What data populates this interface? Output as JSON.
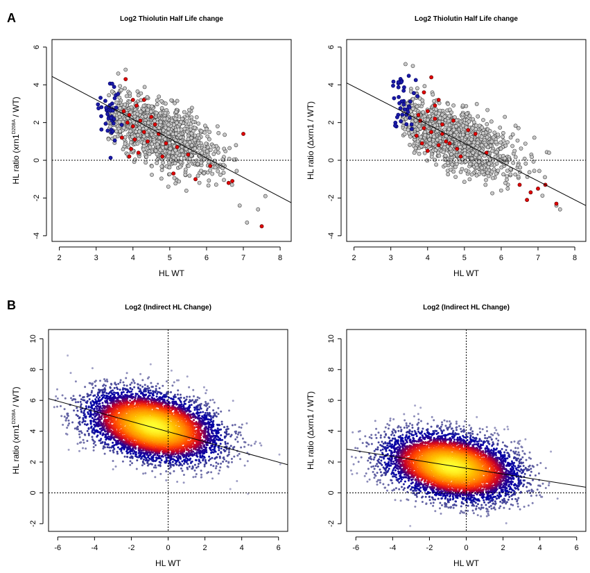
{
  "figure": {
    "panel_a": "A",
    "panel_b": "B"
  },
  "chart_data": [
    {
      "id": "A1",
      "type": "scatter",
      "title": "Log2 Thiolutin Half Life change",
      "xlabel": "HL WT",
      "ylabel_pre": "HL ratio (xrn1",
      "ylabel_sup": "D208A",
      "ylabel_post": " / WT)",
      "xlim": [
        1.8,
        8.3
      ],
      "ylim": [
        -4.3,
        6.4
      ],
      "xticks": [
        2,
        3,
        4,
        5,
        6,
        7,
        8
      ],
      "yticks": [
        -4,
        -2,
        0,
        2,
        4,
        6
      ],
      "hline": 0,
      "vline": null,
      "regression": {
        "slope": -1.03,
        "intercept": 6.3
      },
      "cloud": {
        "n": 1200,
        "center": [
          4.75,
          1.4
        ],
        "sd": [
          0.8,
          1.0
        ],
        "rho": -0.62,
        "xrange": [
          3.3,
          7.7
        ]
      },
      "blue_points": {
        "n": 45,
        "center": [
          3.35,
          2.7
        ],
        "sd": [
          0.15,
          0.8
        ]
      },
      "red_points": [
        [
          3.85,
          2.0
        ],
        [
          3.9,
          2.4
        ],
        [
          4.0,
          1.8
        ],
        [
          4.1,
          2.9
        ],
        [
          4.2,
          2.1
        ],
        [
          4.3,
          1.5
        ],
        [
          4.0,
          3.2
        ],
        [
          3.7,
          1.2
        ],
        [
          4.5,
          2.3
        ],
        [
          4.4,
          1.0
        ],
        [
          4.7,
          1.4
        ],
        [
          4.9,
          0.9
        ],
        [
          5.2,
          0.7
        ],
        [
          5.1,
          -0.7
        ],
        [
          5.7,
          -1.0
        ],
        [
          6.7,
          -1.1
        ],
        [
          7.0,
          1.4
        ],
        [
          7.5,
          -3.5
        ],
        [
          3.8,
          4.3
        ],
        [
          4.3,
          3.2
        ],
        [
          3.95,
          0.6
        ],
        [
          4.6,
          1.9
        ],
        [
          3.75,
          2.6
        ],
        [
          4.15,
          0.4
        ],
        [
          4.8,
          0.2
        ],
        [
          5.5,
          0.3
        ],
        [
          6.1,
          -0.3
        ],
        [
          6.6,
          -1.2
        ],
        [
          4.05,
          1.1
        ],
        [
          3.9,
          0.2
        ]
      ],
      "outliers": [
        [
          7.1,
          -3.3
        ],
        [
          7.4,
          -2.6
        ],
        [
          6.9,
          -2.4
        ],
        [
          7.6,
          -1.9
        ],
        [
          3.6,
          4.6
        ],
        [
          3.8,
          4.8
        ],
        [
          6.3,
          1.8
        ],
        [
          6.8,
          0.8
        ]
      ]
    },
    {
      "id": "A2",
      "type": "scatter",
      "title": "Log2 Thiolutin Half Life change",
      "xlabel": "HL WT",
      "ylabel_pre": "HL ratio (Δxrn1 / WT)",
      "ylabel_sup": "",
      "ylabel_post": "",
      "xlim": [
        1.8,
        8.3
      ],
      "ylim": [
        -4.3,
        6.4
      ],
      "xticks": [
        2,
        3,
        4,
        5,
        6,
        7,
        8
      ],
      "yticks": [
        -4,
        -2,
        0,
        2,
        4,
        6
      ],
      "hline": 0,
      "vline": null,
      "regression": {
        "slope": -1.0,
        "intercept": 5.9
      },
      "cloud": {
        "n": 1200,
        "center": [
          4.75,
          1.1
        ],
        "sd": [
          0.8,
          1.0
        ],
        "rho": -0.62,
        "xrange": [
          3.3,
          7.7
        ]
      },
      "blue_points": {
        "n": 40,
        "center": [
          3.35,
          2.9
        ],
        "sd": [
          0.15,
          0.9
        ]
      },
      "red_points": [
        [
          3.8,
          2.1
        ],
        [
          3.9,
          1.7
        ],
        [
          4.0,
          2.6
        ],
        [
          4.1,
          1.5
        ],
        [
          4.2,
          2.2
        ],
        [
          4.3,
          0.8
        ],
        [
          3.7,
          1.3
        ],
        [
          4.4,
          1.9
        ],
        [
          4.5,
          1.0
        ],
        [
          4.6,
          0.9
        ],
        [
          4.8,
          0.6
        ],
        [
          5.1,
          1.6
        ],
        [
          4.3,
          3.2
        ],
        [
          4.1,
          4.4
        ],
        [
          3.9,
          3.6
        ],
        [
          5.3,
          1.4
        ],
        [
          4.7,
          2.1
        ],
        [
          6.7,
          -2.1
        ],
        [
          6.8,
          -1.7
        ],
        [
          7.0,
          -1.5
        ],
        [
          7.5,
          -2.3
        ],
        [
          3.85,
          0.9
        ],
        [
          4.0,
          0.5
        ],
        [
          4.9,
          0.2
        ],
        [
          5.6,
          0.4
        ],
        [
          4.2,
          2.9
        ],
        [
          3.75,
          2.4
        ],
        [
          4.4,
          1.4
        ],
        [
          6.5,
          -1.3
        ],
        [
          7.2,
          -1.3
        ]
      ],
      "outliers": [
        [
          7.6,
          -2.6
        ],
        [
          7.5,
          -2.4
        ],
        [
          3.6,
          5.0
        ],
        [
          3.4,
          5.1
        ],
        [
          7.3,
          0.4
        ],
        [
          6.9,
          1.2
        ],
        [
          6.1,
          2.3
        ]
      ]
    },
    {
      "id": "B1",
      "type": "scatter",
      "title": "Log2 (Indirect HL Change)",
      "xlabel": "HL WT",
      "ylabel_pre": "HL ratio (xrn1",
      "ylabel_sup": "D208A",
      "ylabel_post": " / WT)",
      "xlim": [
        -6.5,
        6.5
      ],
      "ylim": [
        -2.5,
        10.6
      ],
      "xticks": [
        -6,
        -4,
        -2,
        0,
        2,
        4,
        6
      ],
      "yticks": [
        -2,
        0,
        2,
        4,
        6,
        8,
        10
      ],
      "hline": 0,
      "vline": 0,
      "regression": {
        "slope": -0.33,
        "intercept": 3.97
      },
      "density": {
        "n": 6500,
        "center": [
          -0.8,
          4.3
        ],
        "sd": [
          1.75,
          1.1
        ],
        "rho": -0.35,
        "xrange": [
          -6.3,
          6.3
        ],
        "yrange": [
          -2.3,
          10.3
        ]
      }
    },
    {
      "id": "B2",
      "type": "scatter",
      "title": "Log2 (Indirect HL Change)",
      "xlabel": "HL WT",
      "ylabel_pre": "HL ratio (Δxrn1 / WT)",
      "ylabel_sup": "",
      "ylabel_post": "",
      "xlim": [
        -6.5,
        6.5
      ],
      "ylim": [
        -2.5,
        10.6
      ],
      "xticks": [
        -6,
        -4,
        -2,
        0,
        2,
        4,
        6
      ],
      "yticks": [
        -2,
        0,
        2,
        4,
        6,
        8,
        10
      ],
      "hline": 0,
      "vline": 0,
      "regression": {
        "slope": -0.19,
        "intercept": 1.6
      },
      "density": {
        "n": 6500,
        "center": [
          -0.8,
          1.7
        ],
        "sd": [
          1.75,
          1.05
        ],
        "rho": -0.3,
        "xrange": [
          -6.3,
          6.3
        ],
        "yrange": [
          -2.3,
          10.3
        ]
      }
    }
  ],
  "colors": {
    "grey_fill": "#c8c8c8",
    "grey_stroke": "#404040",
    "blue_fill": "#1a1aa8",
    "blue_stroke": "#000060",
    "red_fill": "#e00000",
    "red_stroke": "#500000",
    "ramp": [
      "#b3b3d1",
      "#7070a8",
      "#3a3a96",
      "#0000a8",
      "#2a0090",
      "#c80028",
      "#ff4000",
      "#ff8a00",
      "#ffc000",
      "#ffff30"
    ]
  }
}
